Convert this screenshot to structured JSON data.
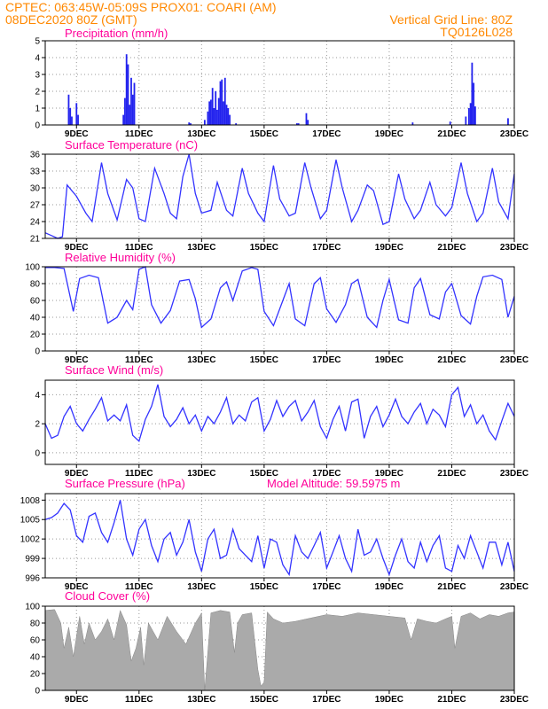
{
  "header": {
    "line1": "CPTEC:   063:45W-05:09S   PROX01: COARI (AM)",
    "line2_left": "08DEC2020 80Z (GMT)",
    "line2_right": "Vertical Grid Line: 80Z",
    "line3_right": "TQ0126L028"
  },
  "colors": {
    "header": "#ff8800",
    "title": "#ff0099",
    "line": "#3333ff",
    "bar": "#2222ee",
    "cloud": "#aaaaaa",
    "grid": "#999999"
  },
  "chart_data": [
    {
      "type": "bar",
      "title": "Precipitation (mm/h)",
      "ylim": [
        0,
        5
      ],
      "yticks": [
        0,
        1,
        2,
        3,
        4,
        5
      ],
      "xlim": [
        8.0,
        23.0
      ],
      "xticks": [
        9,
        11,
        13,
        15,
        17,
        19,
        21,
        23
      ],
      "xtick_labels": [
        "9DEC",
        "11DEC",
        "13DEC",
        "15DEC",
        "17DEC",
        "19DEC",
        "21DEC",
        "23DEC"
      ],
      "grid": true,
      "x": [
        8.75,
        8.8,
        8.85,
        9.0,
        9.05,
        10.5,
        10.55,
        10.6,
        10.65,
        10.7,
        10.75,
        10.8,
        10.85,
        12.6,
        12.65,
        13.1,
        13.2,
        13.25,
        13.3,
        13.35,
        13.4,
        13.45,
        13.5,
        13.55,
        13.6,
        13.65,
        13.7,
        13.75,
        13.8,
        13.85,
        13.9,
        14.1,
        16.05,
        16.1,
        16.35,
        16.4,
        19.75,
        20.95,
        21.45,
        21.55,
        21.6,
        21.65,
        21.7,
        21.75,
        22.8
      ],
      "values": [
        1.8,
        1.0,
        0.5,
        1.3,
        0.6,
        0.6,
        1.6,
        4.2,
        3.6,
        1.2,
        2.8,
        1.8,
        2.5,
        0.15,
        0.1,
        0.3,
        0.8,
        1.4,
        1.5,
        2.2,
        1.0,
        2.0,
        0.9,
        1.6,
        2.6,
        2.7,
        1.4,
        2.8,
        1.2,
        1.0,
        0.6,
        0.1,
        0.1,
        0.1,
        0.7,
        0.3,
        0.15,
        0.2,
        0.5,
        1.0,
        1.3,
        3.7,
        2.5,
        1.1,
        0.4
      ]
    },
    {
      "type": "line",
      "title": "Surface Temperature (nC)",
      "ylim": [
        21,
        36
      ],
      "yticks": [
        21,
        24,
        27,
        30,
        33,
        36
      ],
      "xlim": [
        8.0,
        23.0
      ],
      "xticks": [
        9,
        11,
        13,
        15,
        17,
        19,
        21,
        23
      ],
      "xtick_labels": [
        "9DEC",
        "11DEC",
        "13DEC",
        "15DEC",
        "17DEC",
        "19DEC",
        "21DEC",
        "23DEC"
      ],
      "grid": true,
      "x": [
        8.0,
        8.2,
        8.4,
        8.55,
        8.7,
        9.0,
        9.3,
        9.5,
        9.8,
        10.0,
        10.3,
        10.6,
        10.8,
        11.0,
        11.2,
        11.5,
        11.8,
        12.0,
        12.2,
        12.4,
        12.6,
        12.8,
        13.0,
        13.3,
        13.5,
        13.8,
        14.0,
        14.3,
        14.5,
        14.8,
        15.0,
        15.3,
        15.5,
        15.8,
        16.0,
        16.3,
        16.5,
        16.8,
        17.0,
        17.3,
        17.5,
        17.8,
        18.0,
        18.3,
        18.5,
        18.8,
        19.0,
        19.3,
        19.5,
        19.8,
        20.0,
        20.3,
        20.5,
        20.8,
        21.0,
        21.3,
        21.5,
        21.8,
        22.0,
        22.3,
        22.5,
        22.8,
        23.0
      ],
      "values": [
        22.0,
        21.5,
        21.0,
        21.3,
        30.5,
        28.5,
        25.5,
        24.0,
        34.5,
        29.0,
        24.3,
        31.5,
        30.0,
        24.5,
        24.0,
        33.5,
        29.0,
        25.5,
        24.5,
        32.0,
        36.0,
        29.0,
        25.5,
        26.0,
        31.0,
        26.0,
        25.0,
        33.5,
        29.0,
        25.5,
        24.0,
        34.0,
        28.0,
        25.0,
        25.5,
        34.5,
        30.0,
        24.5,
        26.0,
        35.0,
        30.0,
        24.0,
        26.0,
        30.5,
        29.5,
        23.5,
        24.0,
        32.5,
        28.0,
        24.5,
        26.0,
        31.0,
        27.0,
        25.0,
        26.5,
        34.5,
        29.0,
        24.0,
        25.5,
        33.5,
        27.5,
        24.5,
        32.5
      ]
    },
    {
      "type": "line",
      "title": "Relative Humidity (%)",
      "ylim": [
        0,
        100
      ],
      "yticks": [
        0,
        20,
        40,
        60,
        80,
        100
      ],
      "xlim": [
        8.0,
        23.0
      ],
      "xticks": [
        9,
        11,
        13,
        15,
        17,
        19,
        21,
        23
      ],
      "xtick_labels": [
        "9DEC",
        "11DEC",
        "13DEC",
        "15DEC",
        "17DEC",
        "19DEC",
        "21DEC",
        "23DEC"
      ],
      "grid": true,
      "x": [
        8.0,
        8.3,
        8.6,
        8.9,
        9.1,
        9.4,
        9.7,
        10.0,
        10.3,
        10.6,
        10.8,
        11.0,
        11.2,
        11.4,
        11.7,
        12.0,
        12.3,
        12.6,
        12.8,
        13.0,
        13.3,
        13.6,
        13.8,
        14.0,
        14.3,
        14.6,
        14.8,
        15.0,
        15.3,
        15.6,
        15.8,
        16.0,
        16.3,
        16.6,
        16.8,
        17.0,
        17.3,
        17.6,
        17.8,
        18.0,
        18.3,
        18.6,
        18.8,
        19.0,
        19.3,
        19.6,
        19.8,
        20.0,
        20.3,
        20.6,
        20.8,
        21.0,
        21.3,
        21.6,
        21.8,
        22.0,
        22.3,
        22.6,
        22.8,
        23.0
      ],
      "values": [
        99,
        99,
        98,
        47,
        86,
        90,
        87,
        33,
        40,
        60,
        49,
        97,
        100,
        55,
        33,
        48,
        83,
        85,
        62,
        28,
        38,
        75,
        82,
        60,
        95,
        99,
        97,
        47,
        30,
        60,
        80,
        38,
        30,
        80,
        87,
        50,
        34,
        55,
        80,
        85,
        40,
        28,
        60,
        85,
        37,
        33,
        75,
        86,
        43,
        38,
        70,
        80,
        42,
        32,
        65,
        88,
        90,
        85,
        40,
        65
      ]
    },
    {
      "type": "line",
      "title": "Surface Wind (m/s)",
      "ylim": [
        -0.8,
        5.0
      ],
      "yticks": [
        0,
        2,
        4
      ],
      "xlim": [
        8.0,
        23.0
      ],
      "xticks": [
        9,
        11,
        13,
        15,
        17,
        19,
        21,
        23
      ],
      "xtick_labels": [
        "9DEC",
        "11DEC",
        "13DEC",
        "15DEC",
        "17DEC",
        "19DEC",
        "21DEC",
        "23DEC"
      ],
      "grid": true,
      "x": [
        8.0,
        8.2,
        8.4,
        8.6,
        8.8,
        9.0,
        9.2,
        9.4,
        9.6,
        9.8,
        10.0,
        10.2,
        10.4,
        10.6,
        10.8,
        11.0,
        11.2,
        11.4,
        11.6,
        11.8,
        12.0,
        12.2,
        12.4,
        12.6,
        12.8,
        13.0,
        13.2,
        13.4,
        13.6,
        13.8,
        14.0,
        14.2,
        14.4,
        14.6,
        14.8,
        15.0,
        15.2,
        15.4,
        15.6,
        15.8,
        16.0,
        16.2,
        16.4,
        16.6,
        16.8,
        17.0,
        17.2,
        17.4,
        17.6,
        17.8,
        18.0,
        18.2,
        18.4,
        18.6,
        18.8,
        19.0,
        19.2,
        19.4,
        19.6,
        19.8,
        20.0,
        20.2,
        20.4,
        20.6,
        20.8,
        21.0,
        21.2,
        21.4,
        21.6,
        21.8,
        22.0,
        22.2,
        22.4,
        22.6,
        22.8,
        23.0
      ],
      "values": [
        2.0,
        1.0,
        1.2,
        2.5,
        3.2,
        2.0,
        1.5,
        2.3,
        3.0,
        3.8,
        2.2,
        2.6,
        2.2,
        3.3,
        1.2,
        0.8,
        2.3,
        3.2,
        4.7,
        2.5,
        1.8,
        2.3,
        3.1,
        2.0,
        2.6,
        1.5,
        2.5,
        2.0,
        2.8,
        3.8,
        2.0,
        2.6,
        2.2,
        3.5,
        3.8,
        1.5,
        2.3,
        3.6,
        2.5,
        3.2,
        3.6,
        2.2,
        2.8,
        3.6,
        1.8,
        1.0,
        2.3,
        3.2,
        1.5,
        3.5,
        3.7,
        1.0,
        2.5,
        3.2,
        1.8,
        2.6,
        3.7,
        2.5,
        2.0,
        2.8,
        3.4,
        2.0,
        3.0,
        2.6,
        1.8,
        4.0,
        4.5,
        2.5,
        3.3,
        2.0,
        2.6,
        1.5,
        0.9,
        2.2,
        3.4,
        2.5
      ]
    },
    {
      "type": "line",
      "title": "Surface Pressure (hPa)",
      "annotation": "Model Altitude: 59.5975 m",
      "ylim": [
        996,
        1009
      ],
      "yticks": [
        996,
        999,
        1002,
        1005,
        1008
      ],
      "xlim": [
        8.0,
        23.0
      ],
      "xticks": [
        9,
        11,
        13,
        15,
        17,
        19,
        21,
        23
      ],
      "xtick_labels": [
        "9DEC",
        "11DEC",
        "13DEC",
        "15DEC",
        "17DEC",
        "19DEC",
        "21DEC",
        "23DEC"
      ],
      "grid": true,
      "x": [
        8.0,
        8.2,
        8.4,
        8.6,
        8.8,
        9.0,
        9.2,
        9.4,
        9.6,
        9.8,
        10.0,
        10.2,
        10.4,
        10.6,
        10.8,
        11.0,
        11.2,
        11.4,
        11.6,
        11.8,
        12.0,
        12.2,
        12.4,
        12.6,
        12.8,
        13.0,
        13.2,
        13.4,
        13.6,
        13.8,
        14.0,
        14.2,
        14.4,
        14.6,
        14.8,
        15.0,
        15.2,
        15.4,
        15.6,
        15.8,
        16.0,
        16.2,
        16.4,
        16.6,
        16.8,
        17.0,
        17.2,
        17.4,
        17.6,
        17.8,
        18.0,
        18.2,
        18.4,
        18.6,
        18.8,
        19.0,
        19.2,
        19.4,
        19.6,
        19.8,
        20.0,
        20.2,
        20.4,
        20.6,
        20.8,
        21.0,
        21.2,
        21.4,
        21.6,
        21.8,
        22.0,
        22.2,
        22.4,
        22.6,
        22.8,
        23.0
      ],
      "values": [
        1005,
        1005.3,
        1006,
        1007.5,
        1006.5,
        1002.5,
        1001.5,
        1005.5,
        1006,
        1003,
        1001.5,
        1004.5,
        1008,
        1002,
        999.5,
        1003.5,
        1005,
        1001,
        998.5,
        1002,
        1003,
        999.5,
        1001.5,
        1005,
        1000,
        997,
        1002,
        1003.5,
        999,
        999.5,
        1003.5,
        1000.5,
        999.5,
        998.5,
        1002.5,
        997.5,
        1002,
        1001.5,
        998,
        996.5,
        1002.5,
        1000,
        999,
        1001,
        1003,
        997.5,
        1000,
        1002.5,
        999,
        997,
        1003.5,
        999.5,
        1000,
        1002,
        999,
        996.5,
        999.5,
        1002,
        998.5,
        997.5,
        1001.5,
        998.5,
        1001,
        1002.5,
        997.5,
        997,
        1001,
        999,
        1002.5,
        1000,
        997.5,
        1001.5,
        1001.5,
        998,
        1001.5,
        997
      ]
    },
    {
      "type": "area",
      "title": "Cloud Cover (%)",
      "ylim": [
        0,
        100
      ],
      "yticks": [
        0,
        20,
        40,
        60,
        80,
        100
      ],
      "xlim": [
        8.0,
        23.0
      ],
      "xticks": [
        9,
        11,
        13,
        15,
        17,
        19,
        21,
        23
      ],
      "xtick_labels": [
        "9DEC",
        "11DEC",
        "13DEC",
        "15DEC",
        "17DEC",
        "19DEC",
        "21DEC",
        "23DEC"
      ],
      "grid": true,
      "x": [
        8.0,
        8.3,
        8.5,
        8.6,
        8.75,
        8.9,
        9.1,
        9.25,
        9.4,
        9.6,
        9.8,
        10.0,
        10.2,
        10.4,
        10.6,
        10.75,
        10.9,
        11.05,
        11.15,
        11.3,
        11.6,
        11.9,
        12.2,
        12.5,
        12.8,
        13.0,
        13.1,
        13.3,
        13.6,
        13.9,
        14.05,
        14.15,
        14.3,
        14.6,
        14.8,
        14.9,
        15.0,
        15.1,
        15.3,
        15.6,
        16.0,
        16.5,
        17.0,
        17.5,
        18.0,
        18.5,
        19.0,
        19.5,
        19.7,
        19.9,
        20.2,
        20.5,
        20.8,
        21.0,
        21.1,
        21.3,
        21.6,
        21.9,
        22.2,
        22.5,
        22.8,
        23.0
      ],
      "values": [
        95,
        96,
        80,
        50,
        75,
        40,
        88,
        55,
        80,
        60,
        70,
        85,
        60,
        95,
        78,
        35,
        50,
        75,
        30,
        80,
        60,
        88,
        70,
        55,
        80,
        92,
        0,
        92,
        95,
        93,
        45,
        80,
        90,
        92,
        25,
        5,
        10,
        93,
        85,
        80,
        82,
        86,
        90,
        88,
        92,
        90,
        88,
        86,
        60,
        85,
        82,
        80,
        85,
        88,
        50,
        88,
        92,
        85,
        90,
        88,
        92,
        93
      ]
    }
  ]
}
